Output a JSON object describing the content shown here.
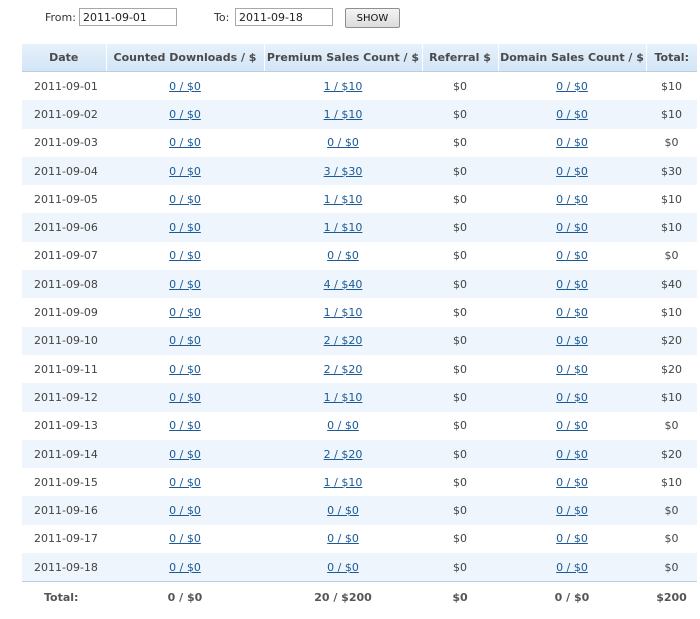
{
  "filter": {
    "from_label": "From:",
    "from_value": "2011-09-01",
    "to_label": "To:",
    "to_value": "2011-09-18",
    "show_label": "SHOW"
  },
  "table": {
    "headers": [
      "Date",
      "Counted Downloads / $",
      "Premium Sales Count / $",
      "Referral $",
      "Domain Sales Count / $",
      "Total:"
    ],
    "rows": [
      {
        "date": "2011-09-01",
        "downloads": "0 / $0",
        "premium": "1 / $10",
        "referral": "$0",
        "domain": "0 / $0",
        "total": "$10"
      },
      {
        "date": "2011-09-02",
        "downloads": "0 / $0",
        "premium": "1 / $10",
        "referral": "$0",
        "domain": "0 / $0",
        "total": "$10"
      },
      {
        "date": "2011-09-03",
        "downloads": "0 / $0",
        "premium": "0 / $0",
        "referral": "$0",
        "domain": "0 / $0",
        "total": "$0"
      },
      {
        "date": "2011-09-04",
        "downloads": "0 / $0",
        "premium": "3 / $30",
        "referral": "$0",
        "domain": "0 / $0",
        "total": "$30"
      },
      {
        "date": "2011-09-05",
        "downloads": "0 / $0",
        "premium": "1 / $10",
        "referral": "$0",
        "domain": "0 / $0",
        "total": "$10"
      },
      {
        "date": "2011-09-06",
        "downloads": "0 / $0",
        "premium": "1 / $10",
        "referral": "$0",
        "domain": "0 / $0",
        "total": "$10"
      },
      {
        "date": "2011-09-07",
        "downloads": "0 / $0",
        "premium": "0 / $0",
        "referral": "$0",
        "domain": "0 / $0",
        "total": "$0"
      },
      {
        "date": "2011-09-08",
        "downloads": "0 / $0",
        "premium": "4 / $40",
        "referral": "$0",
        "domain": "0 / $0",
        "total": "$40"
      },
      {
        "date": "2011-09-09",
        "downloads": "0 / $0",
        "premium": "1 / $10",
        "referral": "$0",
        "domain": "0 / $0",
        "total": "$10"
      },
      {
        "date": "2011-09-10",
        "downloads": "0 / $0",
        "premium": "2 / $20",
        "referral": "$0",
        "domain": "0 / $0",
        "total": "$20"
      },
      {
        "date": "2011-09-11",
        "downloads": "0 / $0",
        "premium": "2 / $20",
        "referral": "$0",
        "domain": "0 / $0",
        "total": "$20"
      },
      {
        "date": "2011-09-12",
        "downloads": "0 / $0",
        "premium": "1 / $10",
        "referral": "$0",
        "domain": "0 / $0",
        "total": "$10"
      },
      {
        "date": "2011-09-13",
        "downloads": "0 / $0",
        "premium": "0 / $0",
        "referral": "$0",
        "domain": "0 / $0",
        "total": "$0"
      },
      {
        "date": "2011-09-14",
        "downloads": "0 / $0",
        "premium": "2 / $20",
        "referral": "$0",
        "domain": "0 / $0",
        "total": "$20"
      },
      {
        "date": "2011-09-15",
        "downloads": "0 / $0",
        "premium": "1 / $10",
        "referral": "$0",
        "domain": "0 / $0",
        "total": "$10"
      },
      {
        "date": "2011-09-16",
        "downloads": "0 / $0",
        "premium": "0 / $0",
        "referral": "$0",
        "domain": "0 / $0",
        "total": "$0"
      },
      {
        "date": "2011-09-17",
        "downloads": "0 / $0",
        "premium": "0 / $0",
        "referral": "$0",
        "domain": "0 / $0",
        "total": "$0"
      },
      {
        "date": "2011-09-18",
        "downloads": "0 / $0",
        "premium": "0 / $0",
        "referral": "$0",
        "domain": "0 / $0",
        "total": "$0"
      }
    ],
    "totals": {
      "label": "Total:",
      "downloads": "0 / $0",
      "premium": "20 / $200",
      "referral": "$0",
      "domain": "0 / $0",
      "total": "$200"
    }
  },
  "colors": {
    "link": "#1a5a96",
    "header_bg": "#d3e5f6",
    "row_alt_bg": "#eef5fc"
  }
}
